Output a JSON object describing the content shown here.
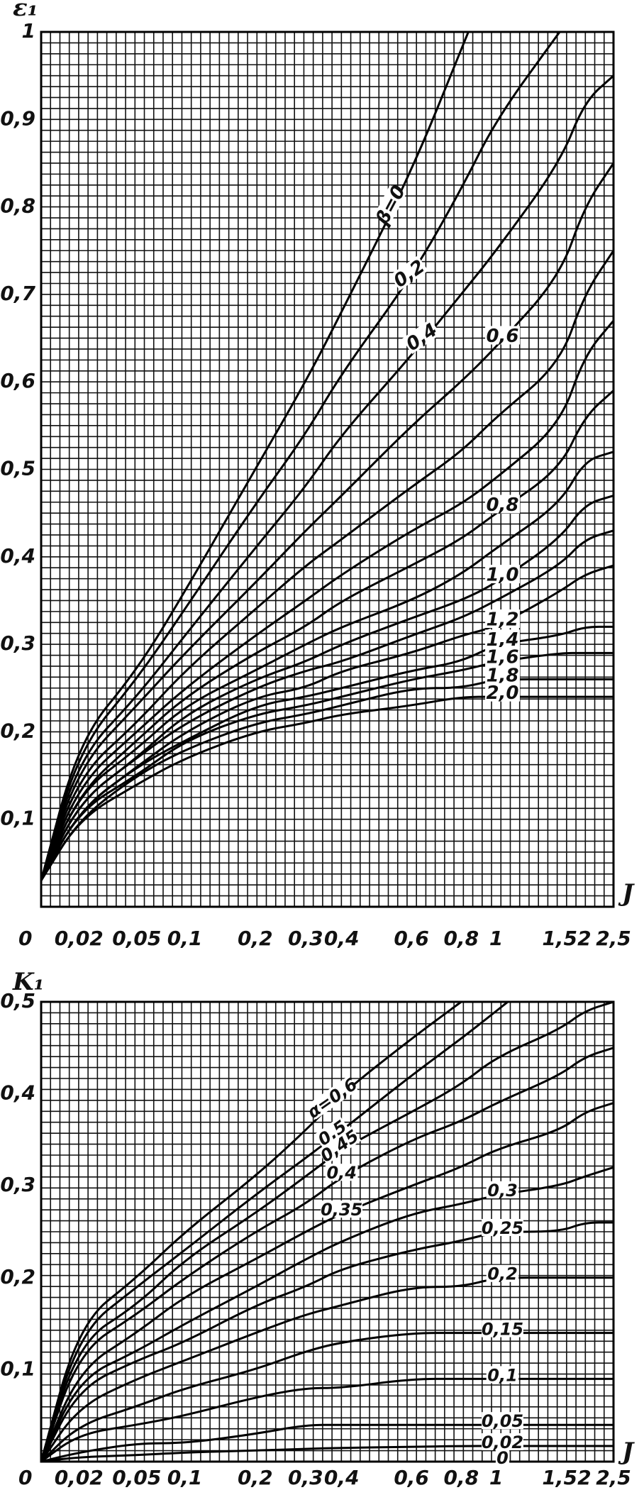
{
  "chart_data": [
    {
      "type": "line",
      "ylabel": "ε₁",
      "xlabel": "J",
      "xlim": [
        0,
        2.5
      ],
      "ylim": [
        0,
        1
      ],
      "x_scale": "nonlinear (stretched near 0)",
      "grid": true,
      "legend": "inline curve labels",
      "x_ticks": [
        {
          "v": 0,
          "label": "0"
        },
        {
          "v": 0.02,
          "label": "0,02"
        },
        {
          "v": 0.05,
          "label": "0,05"
        },
        {
          "v": 0.1,
          "label": "0,1"
        },
        {
          "v": 0.2,
          "label": "0,2"
        },
        {
          "v": 0.3,
          "label": "0,3"
        },
        {
          "v": 0.4,
          "label": "0,4"
        },
        {
          "v": 0.6,
          "label": "0,6"
        },
        {
          "v": 0.8,
          "label": "0,8"
        },
        {
          "v": 1,
          "label": "1"
        },
        {
          "v": 1.5,
          "label": "1,5"
        },
        {
          "v": 2,
          "label": "2"
        },
        {
          "v": 2.5,
          "label": "2,5"
        }
      ],
      "y_ticks": [
        {
          "v": 0.1,
          "label": "0,1"
        },
        {
          "v": 0.2,
          "label": "0,2"
        },
        {
          "v": 0.3,
          "label": "0,3"
        },
        {
          "v": 0.4,
          "label": "0,4"
        },
        {
          "v": 0.5,
          "label": "0,5"
        },
        {
          "v": 0.6,
          "label": "0,6"
        },
        {
          "v": 0.7,
          "label": "0,7"
        },
        {
          "v": 0.8,
          "label": "0,8"
        },
        {
          "v": 0.9,
          "label": "0,9"
        },
        {
          "v": 1,
          "label": "1"
        }
      ],
      "x": [
        0.0,
        0.02,
        0.05,
        0.1,
        0.2,
        0.3,
        0.4,
        0.6,
        0.8,
        1.0,
        1.5,
        2.0,
        2.5
      ],
      "series": [
        {
          "name": "β=0",
          "values": [
            0.03,
            0.19,
            0.27,
            0.36,
            0.5,
            0.6,
            0.68,
            0.84,
            0.98,
            null,
            null,
            null,
            null
          ],
          "label_at": 0.55
        },
        {
          "name": "0,2",
          "values": [
            0.03,
            0.18,
            0.26,
            0.34,
            0.46,
            0.54,
            0.61,
            0.72,
            0.82,
            0.9,
            1.0,
            null,
            null
          ],
          "label_at": 0.6
        },
        {
          "name": "0,4",
          "values": [
            0.03,
            0.17,
            0.24,
            0.31,
            0.41,
            0.48,
            0.54,
            0.63,
            0.7,
            0.75,
            0.85,
            0.92,
            0.95
          ],
          "label_at": 0.65
        },
        {
          "name": "0,6",
          "values": [
            0.03,
            0.16,
            0.23,
            0.29,
            0.37,
            0.43,
            0.47,
            0.55,
            0.6,
            0.64,
            0.72,
            0.8,
            0.85
          ]
        },
        {
          "name": "",
          "values": [
            0.03,
            0.15,
            0.21,
            0.27,
            0.34,
            0.39,
            0.42,
            0.48,
            0.52,
            0.56,
            0.62,
            0.7,
            0.75
          ]
        },
        {
          "name": "",
          "values": [
            0.03,
            0.14,
            0.2,
            0.25,
            0.31,
            0.35,
            0.38,
            0.43,
            0.46,
            0.49,
            0.55,
            0.63,
            0.67
          ]
        },
        {
          "name": "0,8",
          "values": [
            0.03,
            0.13,
            0.19,
            0.24,
            0.29,
            0.32,
            0.35,
            0.39,
            0.42,
            0.45,
            0.5,
            0.56,
            0.59
          ]
        },
        {
          "name": "",
          "values": [
            0.03,
            0.13,
            0.18,
            0.23,
            0.27,
            0.3,
            0.32,
            0.35,
            0.38,
            0.41,
            0.46,
            0.51,
            0.52
          ]
        },
        {
          "name": "1,0",
          "values": [
            0.03,
            0.12,
            0.17,
            0.22,
            0.26,
            0.28,
            0.3,
            0.33,
            0.35,
            0.37,
            0.42,
            0.46,
            0.47
          ]
        },
        {
          "name": "",
          "values": [
            0.03,
            0.12,
            0.17,
            0.21,
            0.25,
            0.27,
            0.28,
            0.31,
            0.33,
            0.35,
            0.39,
            0.42,
            0.43
          ]
        },
        {
          "name": "1,2",
          "values": [
            0.03,
            0.11,
            0.16,
            0.2,
            0.24,
            0.25,
            0.27,
            0.29,
            0.31,
            0.32,
            0.36,
            0.38,
            0.39
          ]
        },
        {
          "name": "1,4",
          "values": [
            0.03,
            0.11,
            0.16,
            0.19,
            0.23,
            0.24,
            0.25,
            0.27,
            0.28,
            0.3,
            0.31,
            0.32,
            0.32
          ]
        },
        {
          "name": "1,6",
          "values": [
            0.03,
            0.11,
            0.15,
            0.19,
            0.22,
            0.23,
            0.24,
            0.26,
            0.27,
            0.28,
            0.29,
            0.29,
            0.29
          ]
        },
        {
          "name": "1,8",
          "values": [
            0.03,
            0.1,
            0.15,
            0.18,
            0.21,
            0.22,
            0.23,
            0.25,
            0.25,
            0.26,
            0.26,
            0.26,
            0.26
          ]
        },
        {
          "name": "2,0",
          "values": [
            0.03,
            0.1,
            0.14,
            0.17,
            0.2,
            0.21,
            0.22,
            0.23,
            0.24,
            0.24,
            0.24,
            0.24,
            0.24
          ]
        }
      ]
    },
    {
      "type": "line",
      "ylabel": "K₁",
      "xlabel": "J",
      "xlim": [
        0,
        2.5
      ],
      "ylim": [
        0,
        0.5
      ],
      "x_scale": "nonlinear (stretched near 0)",
      "grid": true,
      "legend": "inline curve labels",
      "x_ticks": [
        {
          "v": 0,
          "label": "0"
        },
        {
          "v": 0.02,
          "label": "0,02"
        },
        {
          "v": 0.05,
          "label": "0,05"
        },
        {
          "v": 0.1,
          "label": "0,1"
        },
        {
          "v": 0.2,
          "label": "0,2"
        },
        {
          "v": 0.3,
          "label": "0,3"
        },
        {
          "v": 0.4,
          "label": "0,4"
        },
        {
          "v": 0.6,
          "label": "0,6"
        },
        {
          "v": 0.8,
          "label": "0,8"
        },
        {
          "v": 1,
          "label": "1"
        },
        {
          "v": 1.5,
          "label": "1,5"
        },
        {
          "v": 2,
          "label": "2"
        },
        {
          "v": 2.5,
          "label": "2,5"
        }
      ],
      "y_ticks": [
        {
          "v": 0.1,
          "label": "0,1"
        },
        {
          "v": 0.2,
          "label": "0,2"
        },
        {
          "v": 0.3,
          "label": "0,3"
        },
        {
          "v": 0.4,
          "label": "0,4"
        },
        {
          "v": 0.5,
          "label": "0,5"
        }
      ],
      "x": [
        0.0,
        0.02,
        0.05,
        0.1,
        0.2,
        0.3,
        0.4,
        0.6,
        0.8,
        1.0,
        1.5,
        2.0,
        2.5
      ],
      "series": [
        {
          "name": "α=0,6",
          "values": [
            0.0,
            0.15,
            0.2,
            0.25,
            0.31,
            0.36,
            0.4,
            0.46,
            0.5,
            null,
            null,
            null,
            null
          ],
          "label_at": 0.38
        },
        {
          "name": "0,5",
          "values": [
            0.0,
            0.14,
            0.19,
            0.23,
            0.29,
            0.33,
            0.36,
            0.42,
            0.46,
            0.49,
            null,
            null,
            null
          ],
          "label_at": 0.38
        },
        {
          "name": "0,45",
          "values": [
            0.0,
            0.13,
            0.17,
            0.22,
            0.27,
            0.31,
            0.34,
            0.38,
            0.41,
            0.44,
            0.47,
            0.49,
            0.5
          ],
          "label_at": 0.4
        },
        {
          "name": "0,4",
          "values": [
            0.0,
            0.12,
            0.16,
            0.2,
            0.25,
            0.28,
            0.31,
            0.35,
            0.37,
            0.39,
            0.42,
            0.44,
            0.45
          ],
          "label_at": 0.4
        },
        {
          "name": "0,35",
          "values": [
            0.0,
            0.1,
            0.14,
            0.18,
            0.22,
            0.25,
            0.27,
            0.3,
            0.32,
            0.34,
            0.36,
            0.38,
            0.39
          ],
          "label_at": 0.4
        },
        {
          "name": "0,3",
          "values": [
            0.0,
            0.09,
            0.12,
            0.15,
            0.19,
            0.22,
            0.24,
            0.27,
            0.28,
            0.29,
            0.3,
            0.31,
            0.32
          ]
        },
        {
          "name": "0,25",
          "values": [
            0.0,
            0.08,
            0.11,
            0.13,
            0.17,
            0.19,
            0.21,
            0.23,
            0.24,
            0.25,
            0.25,
            0.26,
            0.26
          ]
        },
        {
          "name": "0,2",
          "values": [
            0.0,
            0.06,
            0.09,
            0.11,
            0.14,
            0.16,
            0.17,
            0.19,
            0.19,
            0.2,
            0.2,
            0.2,
            0.2
          ]
        },
        {
          "name": "0,15",
          "values": [
            0.0,
            0.04,
            0.06,
            0.08,
            0.1,
            0.12,
            0.13,
            0.14,
            0.14,
            0.14,
            0.14,
            0.14,
            0.14
          ]
        },
        {
          "name": "0,1",
          "values": [
            0.0,
            0.03,
            0.04,
            0.05,
            0.07,
            0.08,
            0.08,
            0.09,
            0.09,
            0.09,
            0.09,
            0.09,
            0.09
          ]
        },
        {
          "name": "0,05",
          "values": [
            0.0,
            0.01,
            0.02,
            0.02,
            0.03,
            0.04,
            0.04,
            0.04,
            0.04,
            0.04,
            0.04,
            0.04,
            0.04
          ]
        },
        {
          "name": "0,02",
          "values": [
            0.0,
            0.005,
            0.007,
            0.01,
            0.012,
            0.014,
            0.015,
            0.016,
            0.017,
            0.017,
            0.017,
            0.017,
            0.017
          ]
        },
        {
          "name": "0",
          "values": [
            0.0,
            0.0,
            0.0,
            0.0,
            0.0,
            0.0,
            0.0,
            0.0,
            0.0,
            0.0,
            0.0,
            0.0,
            0.0
          ]
        }
      ]
    }
  ]
}
